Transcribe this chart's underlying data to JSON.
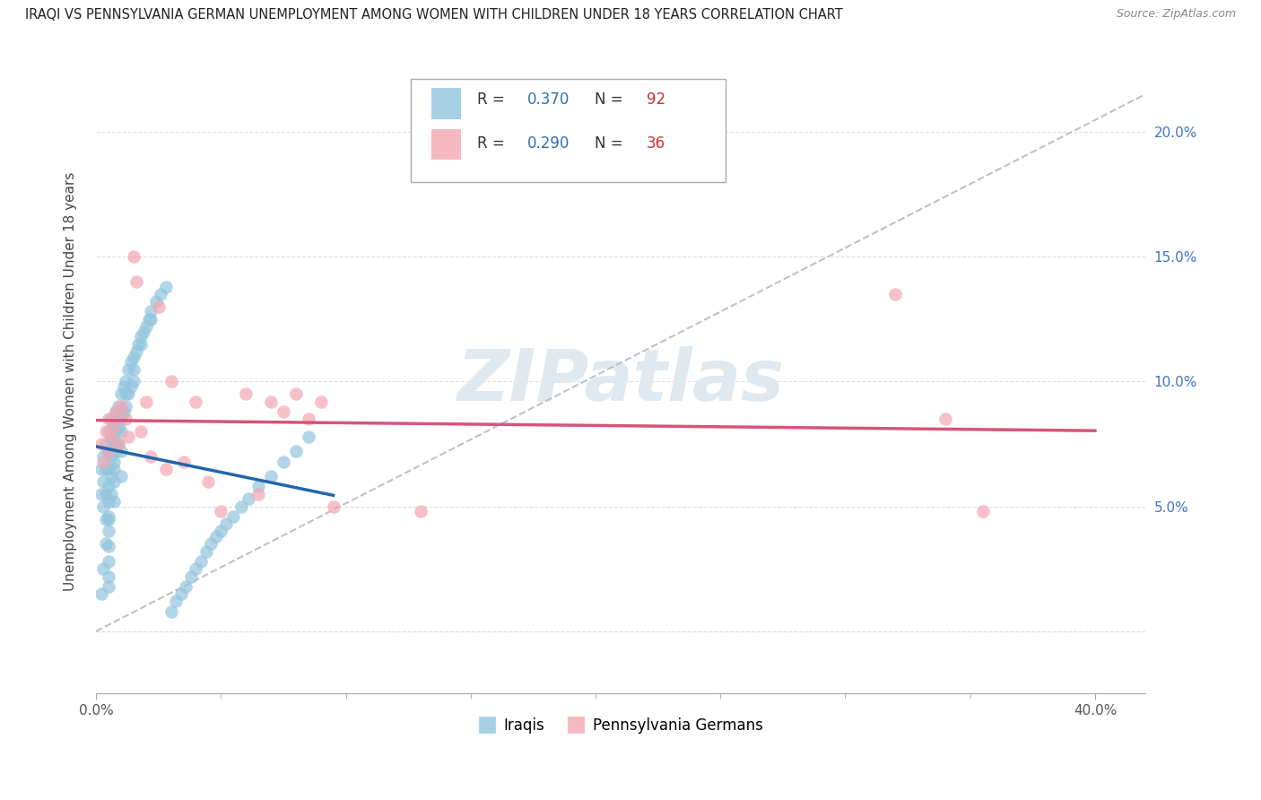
{
  "title": "IRAQI VS PENNSYLVANIA GERMAN UNEMPLOYMENT AMONG WOMEN WITH CHILDREN UNDER 18 YEARS CORRELATION CHART",
  "source": "Source: ZipAtlas.com",
  "ylabel": "Unemployment Among Women with Children Under 18 years",
  "iraqis_R": 0.37,
  "iraqis_N": 92,
  "pg_R": 0.29,
  "pg_N": 36,
  "iraqis_color": "#92c5de",
  "pg_color": "#f4a6b2",
  "iraqis_line_color": "#2166ac",
  "pg_line_color": "#d6547a",
  "dashed_line_color": "#bbbbbb",
  "legend_R_color": "#3070b0",
  "legend_N_color": "#cc3333",
  "watermark_color": "#e0e8f0",
  "xlim_min": 0.0,
  "xlim_max": 0.42,
  "ylim_min": -0.025,
  "ylim_max": 0.225,
  "ytick_vals": [
    0.0,
    0.05,
    0.1,
    0.15,
    0.2
  ],
  "ytick_labels": [
    "",
    "5.0%",
    "10.0%",
    "15.0%",
    "20.0%"
  ],
  "xtick_vals": [
    0.0,
    0.4
  ],
  "xtick_labels": [
    "0.0%",
    "40.0%"
  ],
  "iraqis_x": [
    0.002,
    0.002,
    0.003,
    0.003,
    0.003,
    0.004,
    0.004,
    0.004,
    0.004,
    0.005,
    0.005,
    0.005,
    0.005,
    0.005,
    0.005,
    0.005,
    0.005,
    0.005,
    0.005,
    0.005,
    0.006,
    0.006,
    0.006,
    0.006,
    0.007,
    0.007,
    0.007,
    0.007,
    0.007,
    0.008,
    0.008,
    0.008,
    0.009,
    0.009,
    0.009,
    0.01,
    0.01,
    0.01,
    0.01,
    0.01,
    0.011,
    0.011,
    0.012,
    0.012,
    0.013,
    0.013,
    0.014,
    0.014,
    0.015,
    0.015,
    0.016,
    0.017,
    0.018,
    0.019,
    0.02,
    0.021,
    0.022,
    0.024,
    0.026,
    0.028,
    0.03,
    0.032,
    0.034,
    0.036,
    0.038,
    0.04,
    0.042,
    0.044,
    0.046,
    0.048,
    0.05,
    0.052,
    0.055,
    0.058,
    0.061,
    0.065,
    0.07,
    0.075,
    0.08,
    0.085,
    0.002,
    0.003,
    0.004,
    0.005,
    0.006,
    0.007,
    0.008,
    0.01,
    0.012,
    0.015,
    0.018,
    0.022
  ],
  "iraqis_y": [
    0.065,
    0.055,
    0.07,
    0.06,
    0.05,
    0.075,
    0.065,
    0.055,
    0.045,
    0.08,
    0.072,
    0.065,
    0.058,
    0.052,
    0.046,
    0.04,
    0.034,
    0.028,
    0.022,
    0.018,
    0.085,
    0.077,
    0.07,
    0.062,
    0.082,
    0.075,
    0.068,
    0.06,
    0.052,
    0.088,
    0.08,
    0.072,
    0.09,
    0.082,
    0.075,
    0.095,
    0.088,
    0.08,
    0.072,
    0.062,
    0.098,
    0.088,
    0.1,
    0.09,
    0.105,
    0.095,
    0.108,
    0.098,
    0.11,
    0.1,
    0.112,
    0.115,
    0.118,
    0.12,
    0.122,
    0.125,
    0.128,
    0.132,
    0.135,
    0.138,
    0.008,
    0.012,
    0.015,
    0.018,
    0.022,
    0.025,
    0.028,
    0.032,
    0.035,
    0.038,
    0.04,
    0.043,
    0.046,
    0.05,
    0.053,
    0.058,
    0.062,
    0.068,
    0.072,
    0.078,
    0.015,
    0.025,
    0.035,
    0.045,
    0.055,
    0.065,
    0.075,
    0.085,
    0.095,
    0.105,
    0.115,
    0.125
  ],
  "pg_x": [
    0.002,
    0.003,
    0.004,
    0.005,
    0.005,
    0.006,
    0.007,
    0.008,
    0.009,
    0.01,
    0.012,
    0.013,
    0.015,
    0.016,
    0.018,
    0.02,
    0.022,
    0.025,
    0.028,
    0.03,
    0.035,
    0.04,
    0.045,
    0.05,
    0.06,
    0.065,
    0.07,
    0.075,
    0.08,
    0.085,
    0.09,
    0.095,
    0.13,
    0.32,
    0.34,
    0.355
  ],
  "pg_y": [
    0.075,
    0.068,
    0.08,
    0.085,
    0.072,
    0.078,
    0.082,
    0.088,
    0.075,
    0.09,
    0.085,
    0.078,
    0.15,
    0.14,
    0.08,
    0.092,
    0.07,
    0.13,
    0.065,
    0.1,
    0.068,
    0.092,
    0.06,
    0.048,
    0.095,
    0.055,
    0.092,
    0.088,
    0.095,
    0.085,
    0.092,
    0.05,
    0.048,
    0.135,
    0.085,
    0.048
  ]
}
